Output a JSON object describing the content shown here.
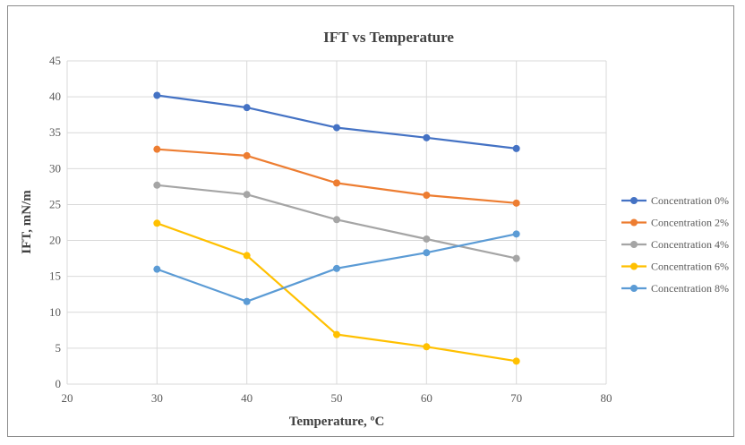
{
  "chart_data": {
    "type": "line",
    "title": "IFT vs Temperature",
    "xlabel": "Temperature, ºC",
    "ylabel": "IFT, mN/m",
    "xlim": [
      20,
      80
    ],
    "ylim": [
      0,
      45
    ],
    "xticks": [
      "20",
      "30",
      "40",
      "50",
      "60",
      "70",
      "80"
    ],
    "yticks": [
      "0",
      "5",
      "10",
      "15",
      "20",
      "25",
      "30",
      "35",
      "40",
      "45"
    ],
    "grid": true,
    "legend_position": "right",
    "x": [
      30,
      40,
      50,
      60,
      70
    ],
    "series": [
      {
        "name": "Concentration 0%",
        "color": "#4472C4",
        "values": [
          40.2,
          38.5,
          35.7,
          34.3,
          32.8
        ]
      },
      {
        "name": "Concentration 2%",
        "color": "#ED7D31",
        "values": [
          32.7,
          31.8,
          28.0,
          26.3,
          25.2
        ]
      },
      {
        "name": "Concentration 4%",
        "color": "#A5A5A5",
        "values": [
          27.7,
          26.4,
          22.9,
          20.2,
          17.5
        ]
      },
      {
        "name": "Concentration 6%",
        "color": "#FFC000",
        "values": [
          22.4,
          17.9,
          6.9,
          5.2,
          3.2
        ]
      },
      {
        "name": "Concentration 8%",
        "color": "#5B9BD5",
        "values": [
          16.0,
          11.5,
          16.1,
          18.3,
          20.9
        ]
      }
    ]
  }
}
